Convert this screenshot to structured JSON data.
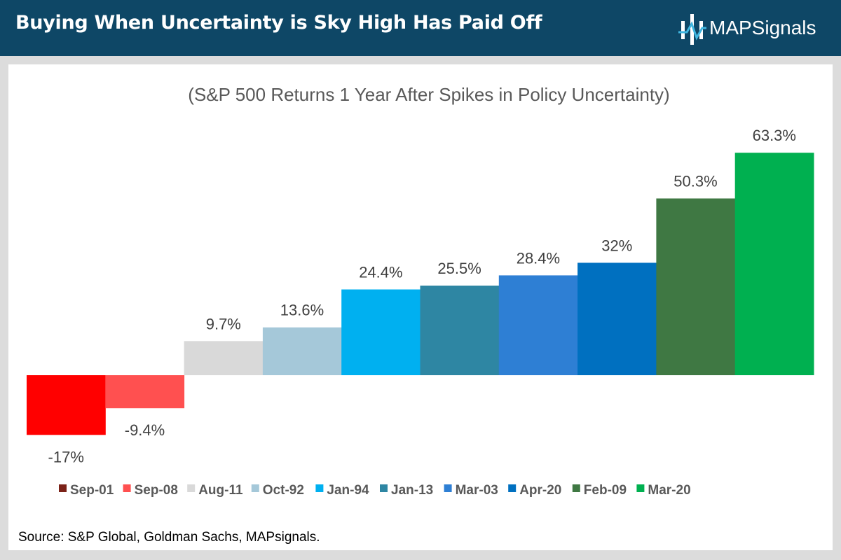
{
  "header": {
    "title": "Buying When Uncertainty is Sky High Has Paid Off",
    "logo_text": "MAPSignals"
  },
  "colors": {
    "header_bg": "#0e4766",
    "panel_bg": "#ffffff",
    "title_text": "#595959",
    "label_text": "#404040"
  },
  "chart_data": {
    "type": "bar",
    "title": "(S&P 500 Returns 1 Year After Spikes in Policy Uncertainty)",
    "xlabel": "",
    "ylabel": "",
    "ylim": [
      -17,
      63.3
    ],
    "grid": false,
    "legend_position": "bottom",
    "categories": [
      "Sep-01",
      "Sep-08",
      "Aug-11",
      "Oct-92",
      "Jan-94",
      "Jan-13",
      "Mar-03",
      "Apr-20",
      "Feb-09",
      "Mar-20"
    ],
    "values": [
      -17,
      -9.4,
      9.7,
      13.6,
      24.4,
      25.5,
      28.4,
      32,
      50.3,
      63.3
    ],
    "data_labels": [
      "-17%",
      "-9.4%",
      "9.7%",
      "13.6%",
      "24.4%",
      "25.5%",
      "28.4%",
      "32%",
      "50.3%",
      "63.3%"
    ],
    "bar_colors": [
      "#ff0000",
      "#ff5050",
      "#d9d9d9",
      "#a5c8d9",
      "#00b0f0",
      "#2e86a3",
      "#2e7fd4",
      "#0070c0",
      "#3f7843",
      "#00b050"
    ],
    "legend_colors": [
      "#7b2218",
      "#ff5050",
      "#d9d9d9",
      "#a5c8d9",
      "#00b0f0",
      "#2e86a3",
      "#2e7fd4",
      "#0070c0",
      "#3f7843",
      "#00b050"
    ]
  },
  "footer": {
    "source": "Source: S&P Global, Goldman Sachs, MAPsignals."
  }
}
